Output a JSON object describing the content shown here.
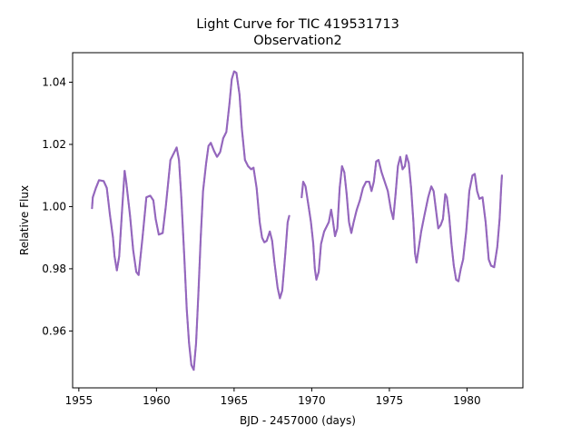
{
  "chart_data": {
    "type": "scatter",
    "title": "Light Curve for TIC 419531713",
    "subtitle": "Observation2",
    "xlabel": "BJD - 2457000 (days)",
    "ylabel": "Relative Flux",
    "xlim": [
      1954.6,
      1983.6
    ],
    "ylim": [
      0.9417,
      1.0495
    ],
    "xticks": [
      1955,
      1960,
      1965,
      1970,
      1975,
      1980
    ],
    "yticks": [
      0.96,
      0.98,
      1.0,
      1.02,
      1.04
    ],
    "xtick_labels": [
      "1955",
      "1960",
      "1965",
      "1970",
      "1975",
      "1980"
    ],
    "ytick_labels": [
      "0.96",
      "0.98",
      "1.00",
      "1.02",
      "1.04"
    ],
    "grid": false,
    "series_color": "#9467bd",
    "series": [
      {
        "segments": [
          [
            [
              1955.85,
              0.9995
            ],
            [
              1955.9,
              1.003
            ],
            [
              1956.1,
              1.006
            ],
            [
              1956.3,
              1.0085
            ],
            [
              1956.6,
              1.0082
            ],
            [
              1956.8,
              1.006
            ],
            [
              1957.0,
              0.9975
            ],
            [
              1957.2,
              0.99
            ],
            [
              1957.3,
              0.984
            ],
            [
              1957.45,
              0.9795
            ],
            [
              1957.6,
              0.984
            ],
            [
              1957.8,
              1.0
            ],
            [
              1957.95,
              1.0115
            ],
            [
              1958.05,
              1.008
            ],
            [
              1958.3,
              0.997
            ],
            [
              1958.5,
              0.986
            ],
            [
              1958.7,
              0.979
            ],
            [
              1958.85,
              0.978
            ],
            [
              1959.1,
              0.99
            ],
            [
              1959.35,
              1.003
            ],
            [
              1959.6,
              1.0035
            ],
            [
              1959.8,
              1.002
            ],
            [
              1959.95,
              0.996
            ],
            [
              1960.15,
              0.991
            ],
            [
              1960.4,
              0.9915
            ],
            [
              1960.6,
              1.0
            ],
            [
              1960.9,
              1.015
            ],
            [
              1961.15,
              1.0175
            ],
            [
              1961.3,
              1.019
            ],
            [
              1961.45,
              1.015
            ],
            [
              1961.6,
              1.003
            ],
            [
              1961.8,
              0.983
            ],
            [
              1961.95,
              0.967
            ],
            [
              1962.1,
              0.956
            ],
            [
              1962.25,
              0.949
            ],
            [
              1962.4,
              0.9475
            ],
            [
              1962.55,
              0.956
            ],
            [
              1962.7,
              0.972
            ],
            [
              1962.85,
              0.99
            ],
            [
              1963.0,
              1.005
            ],
            [
              1963.2,
              1.014
            ],
            [
              1963.35,
              1.0195
            ],
            [
              1963.5,
              1.0205
            ],
            [
              1963.7,
              1.018
            ],
            [
              1963.9,
              1.016
            ],
            [
              1964.1,
              1.0175
            ],
            [
              1964.3,
              1.022
            ],
            [
              1964.5,
              1.024
            ],
            [
              1964.7,
              1.033
            ],
            [
              1964.85,
              1.041
            ],
            [
              1965.0,
              1.0435
            ],
            [
              1965.15,
              1.043
            ],
            [
              1965.35,
              1.036
            ],
            [
              1965.5,
              1.025
            ],
            [
              1965.7,
              1.015
            ],
            [
              1965.9,
              1.013
            ],
            [
              1966.1,
              1.012
            ],
            [
              1966.25,
              1.0125
            ],
            [
              1966.45,
              1.006
            ],
            [
              1966.65,
              0.995
            ],
            [
              1966.8,
              0.99
            ],
            [
              1966.95,
              0.9885
            ],
            [
              1967.1,
              0.989
            ],
            [
              1967.3,
              0.992
            ],
            [
              1967.45,
              0.989
            ],
            [
              1967.6,
              0.982
            ],
            [
              1967.8,
              0.974
            ],
            [
              1967.95,
              0.9705
            ],
            [
              1968.1,
              0.973
            ],
            [
              1968.3,
              0.985
            ],
            [
              1968.45,
              0.995
            ],
            [
              1968.55,
              0.997
            ]
          ],
          [
            [
              1969.35,
              1.003
            ],
            [
              1969.45,
              1.008
            ],
            [
              1969.6,
              1.0065
            ],
            [
              1969.8,
              1.0
            ],
            [
              1969.95,
              0.995
            ],
            [
              1970.1,
              0.988
            ],
            [
              1970.2,
              0.98
            ],
            [
              1970.3,
              0.9765
            ],
            [
              1970.45,
              0.979
            ],
            [
              1970.6,
              0.988
            ],
            [
              1970.8,
              0.992
            ],
            [
              1970.95,
              0.9935
            ],
            [
              1971.1,
              0.995
            ],
            [
              1971.25,
              0.999
            ],
            [
              1971.35,
              0.996
            ],
            [
              1971.5,
              0.9905
            ],
            [
              1971.65,
              0.993
            ],
            [
              1971.8,
              1.006
            ],
            [
              1971.95,
              1.013
            ],
            [
              1972.1,
              1.011
            ],
            [
              1972.25,
              1.004
            ],
            [
              1972.4,
              0.995
            ],
            [
              1972.55,
              0.9915
            ],
            [
              1972.7,
              0.995
            ],
            [
              1972.9,
              0.999
            ],
            [
              1973.1,
              1.002
            ],
            [
              1973.3,
              1.006
            ],
            [
              1973.5,
              1.008
            ],
            [
              1973.7,
              1.008
            ],
            [
              1973.85,
              1.005
            ],
            [
              1974.0,
              1.008
            ],
            [
              1974.15,
              1.0145
            ],
            [
              1974.3,
              1.015
            ],
            [
              1974.5,
              1.011
            ],
            [
              1974.7,
              1.008
            ],
            [
              1974.9,
              1.005
            ],
            [
              1975.1,
              0.999
            ],
            [
              1975.25,
              0.996
            ],
            [
              1975.4,
              1.004
            ],
            [
              1975.55,
              1.013
            ],
            [
              1975.7,
              1.016
            ],
            [
              1975.85,
              1.012
            ],
            [
              1976.0,
              1.013
            ],
            [
              1976.1,
              1.0165
            ],
            [
              1976.25,
              1.014
            ],
            [
              1976.4,
              1.006
            ],
            [
              1976.55,
              0.995
            ],
            [
              1976.65,
              0.985
            ],
            [
              1976.75,
              0.982
            ],
            [
              1976.9,
              0.987
            ],
            [
              1977.05,
              0.992
            ],
            [
              1977.25,
              0.997
            ],
            [
              1977.5,
              1.003
            ],
            [
              1977.7,
              1.0065
            ],
            [
              1977.85,
              1.005
            ],
            [
              1978.0,
              0.999
            ],
            [
              1978.15,
              0.993
            ],
            [
              1978.3,
              0.994
            ],
            [
              1978.45,
              0.996
            ],
            [
              1978.6,
              1.004
            ],
            [
              1978.7,
              1.003
            ],
            [
              1978.85,
              0.997
            ],
            [
              1979.0,
              0.988
            ],
            [
              1979.15,
              0.981
            ],
            [
              1979.3,
              0.9765
            ],
            [
              1979.45,
              0.976
            ],
            [
              1979.6,
              0.98
            ],
            [
              1979.75,
              0.983
            ],
            [
              1979.95,
              0.992
            ],
            [
              1980.15,
              1.005
            ],
            [
              1980.35,
              1.01
            ],
            [
              1980.5,
              1.0105
            ],
            [
              1980.65,
              1.005
            ],
            [
              1980.8,
              1.0025
            ],
            [
              1981.0,
              1.003
            ],
            [
              1981.2,
              0.995
            ],
            [
              1981.4,
              0.983
            ],
            [
              1981.55,
              0.981
            ],
            [
              1981.75,
              0.9805
            ],
            [
              1981.95,
              0.987
            ],
            [
              1982.1,
              0.996
            ],
            [
              1982.2,
              1.006
            ],
            [
              1982.25,
              1.01
            ]
          ]
        ]
      }
    ]
  }
}
